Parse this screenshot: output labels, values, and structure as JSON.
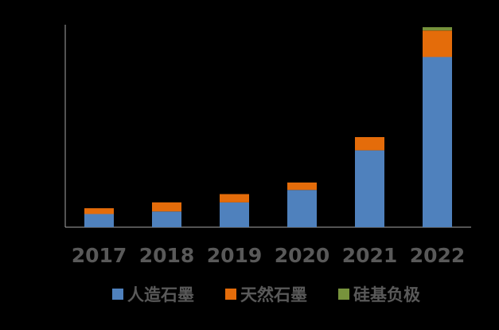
{
  "chart_data": {
    "type": "bar",
    "stacked": true,
    "categories": [
      "2017",
      "2018",
      "2019",
      "2020",
      "2021",
      "2022"
    ],
    "series": [
      {
        "name": "人造石墨",
        "color": "#4F81BD",
        "values": [
          16,
          19,
          30,
          45,
          93,
          206
        ]
      },
      {
        "name": "天然石墨",
        "color": "#E46C0A",
        "values": [
          7,
          11,
          10,
          9,
          16,
          32
        ]
      },
      {
        "name": "硅基负极",
        "color": "#77933C",
        "values": [
          0,
          0,
          0,
          0,
          0,
          4
        ]
      }
    ],
    "ylim": [
      0,
      245
    ],
    "grid": false,
    "legend_position": "bottom"
  }
}
